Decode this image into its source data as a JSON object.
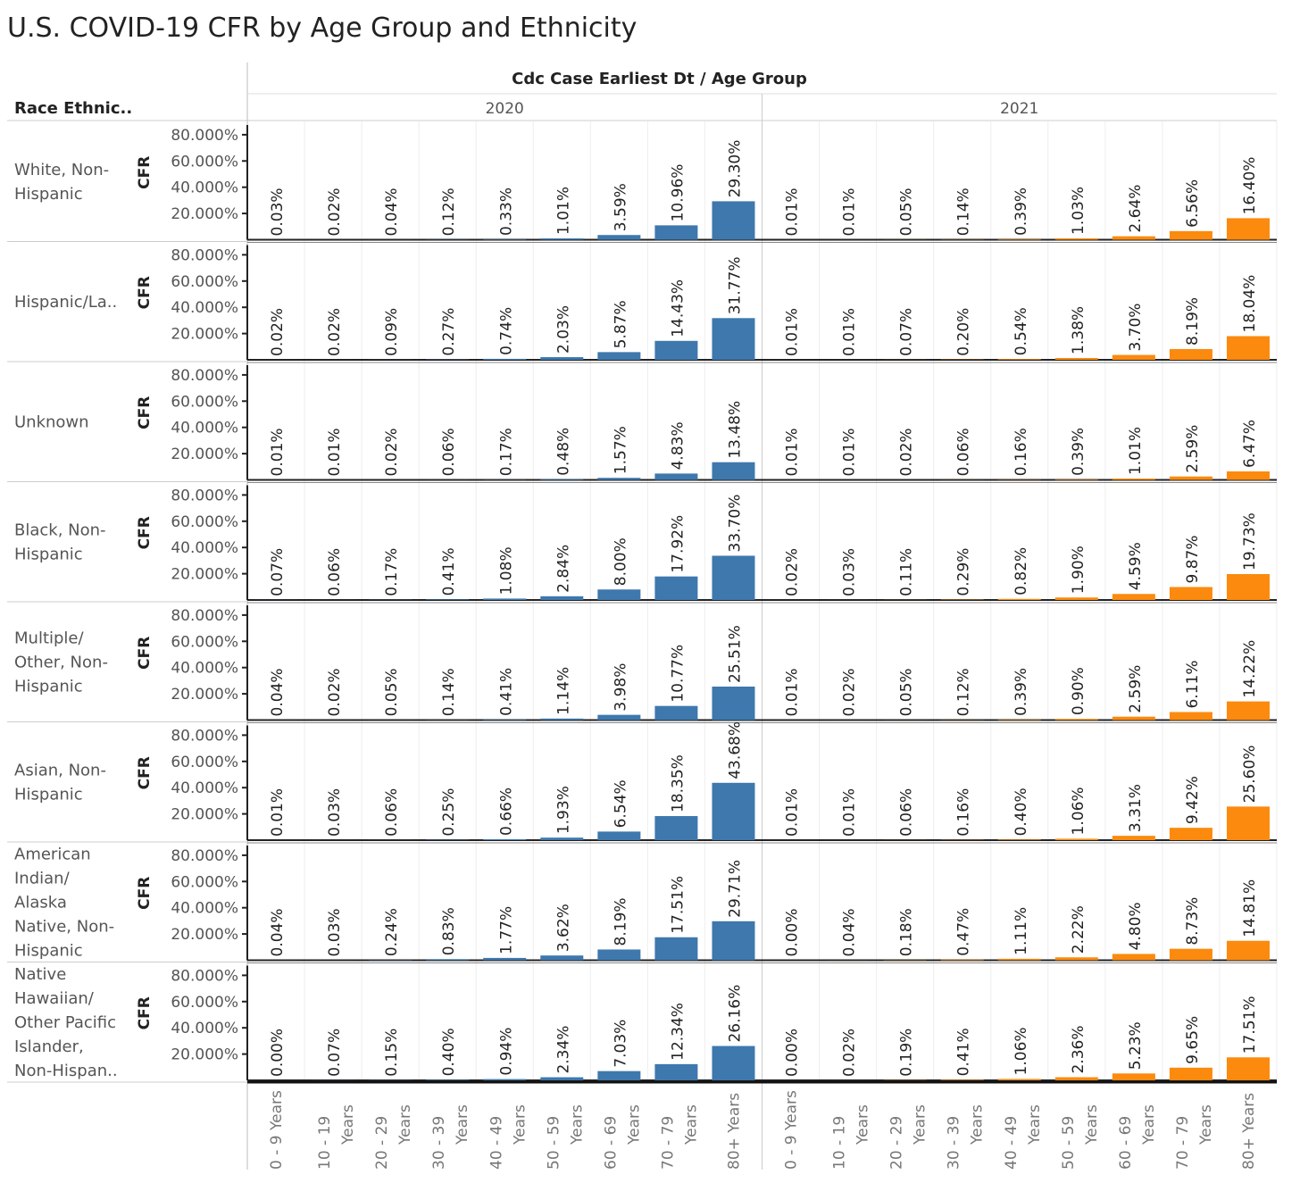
{
  "title": "U.S. COVID-19 CFR by Age Group and Ethnicity",
  "chart_data": {
    "type": "bar",
    "title": "U.S. COVID-19 CFR by Age Group and Ethnicity",
    "column_header": "Cdc Case Earliest Dt  /  Age Group",
    "row_header": "Race Ethnic..",
    "ylabel": "CFR",
    "ylim": [
      0,
      90
    ],
    "yticks": [
      "20.000%",
      "40.000%",
      "60.000%",
      "80.000%"
    ],
    "ytick_values": [
      20,
      40,
      60,
      80
    ],
    "years": [
      "2020",
      "2021"
    ],
    "year_colors": {
      "2020": "#3e78ad",
      "2021": "#fb8a0f"
    },
    "categories": [
      "0 - 9 Years",
      "10 - 19 Years",
      "20 - 29 Years",
      "30 - 39 Years",
      "40 - 49 Years",
      "50 - 59 Years",
      "60 - 69 Years",
      "70 - 79 Years",
      "80+ Years"
    ],
    "rows": [
      {
        "name": "White, Non-Hispanic",
        "lines": [
          "White, Non-",
          "Hispanic"
        ],
        "2020": [
          0.03,
          0.02,
          0.04,
          0.12,
          0.33,
          1.01,
          3.59,
          10.96,
          29.3
        ],
        "2021": [
          0.01,
          0.01,
          0.05,
          0.14,
          0.39,
          1.03,
          2.64,
          6.56,
          16.4
        ]
      },
      {
        "name": "Hispanic/La..",
        "lines": [
          "Hispanic/La.."
        ],
        "2020": [
          0.02,
          0.02,
          0.09,
          0.27,
          0.74,
          2.03,
          5.87,
          14.43,
          31.77
        ],
        "2021": [
          0.01,
          0.01,
          0.07,
          0.2,
          0.54,
          1.38,
          3.7,
          8.19,
          18.04
        ]
      },
      {
        "name": "Unknown",
        "lines": [
          "Unknown"
        ],
        "2020": [
          0.01,
          0.01,
          0.02,
          0.06,
          0.17,
          0.48,
          1.57,
          4.83,
          13.48
        ],
        "2021": [
          0.01,
          0.01,
          0.02,
          0.06,
          0.16,
          0.39,
          1.01,
          2.59,
          6.47
        ]
      },
      {
        "name": "Black, Non-Hispanic",
        "lines": [
          "Black, Non-",
          "Hispanic"
        ],
        "2020": [
          0.07,
          0.06,
          0.17,
          0.41,
          1.08,
          2.84,
          8.0,
          17.92,
          33.7
        ],
        "2021": [
          0.02,
          0.03,
          0.11,
          0.29,
          0.82,
          1.9,
          4.59,
          9.87,
          19.73
        ]
      },
      {
        "name": "Multiple/Other, Non-Hispanic",
        "lines": [
          "Multiple/",
          "Other, Non-",
          "Hispanic"
        ],
        "2020": [
          0.04,
          0.02,
          0.05,
          0.14,
          0.41,
          1.14,
          3.98,
          10.77,
          25.51
        ],
        "2021": [
          0.01,
          0.02,
          0.05,
          0.12,
          0.39,
          0.9,
          2.59,
          6.11,
          14.22
        ]
      },
      {
        "name": "Asian, Non-Hispanic",
        "lines": [
          "Asian, Non-",
          "Hispanic"
        ],
        "2020": [
          0.01,
          0.03,
          0.06,
          0.25,
          0.66,
          1.93,
          6.54,
          18.35,
          43.68
        ],
        "2021": [
          0.01,
          0.01,
          0.06,
          0.16,
          0.4,
          1.06,
          3.31,
          9.42,
          25.6
        ]
      },
      {
        "name": "American Indian/Alaska Native, Non-Hispanic",
        "lines": [
          "American",
          "Indian/",
          "Alaska",
          "Native, Non-",
          "Hispanic"
        ],
        "2020": [
          0.04,
          0.03,
          0.24,
          0.83,
          1.77,
          3.62,
          8.19,
          17.51,
          29.71
        ],
        "2021": [
          0.0,
          0.04,
          0.18,
          0.47,
          1.11,
          2.22,
          4.8,
          8.73,
          14.81
        ]
      },
      {
        "name": "Native Hawaiian/Other Pacific Islander, Non-Hispan..",
        "lines": [
          "Native",
          "Hawaiian/",
          "Other Pacific",
          "Islander,",
          "Non-Hispan.."
        ],
        "2020": [
          0.0,
          0.07,
          0.15,
          0.4,
          0.94,
          2.34,
          7.03,
          12.34,
          26.16
        ],
        "2021": [
          0.0,
          0.02,
          0.19,
          0.41,
          1.06,
          2.36,
          5.23,
          9.65,
          17.51
        ]
      }
    ],
    "grid": true,
    "legend": "none"
  }
}
